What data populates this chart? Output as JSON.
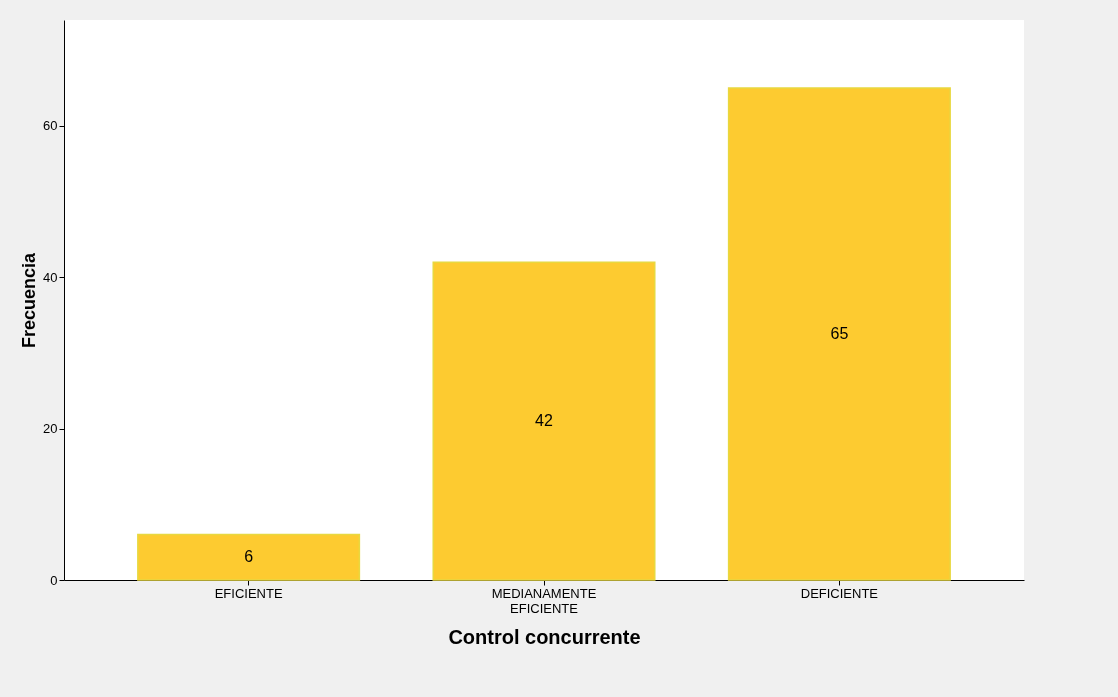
{
  "chart_data": {
    "type": "bar",
    "xlabel": "Control concurrente",
    "ylabel": "Frecuencia",
    "categories": [
      "EFICIENTE",
      "MEDIANAMENTE EFICIENTE",
      "DEFICIENTE"
    ],
    "values": [
      6,
      42,
      65
    ],
    "color": "#fdcb30",
    "ylim": [
      0,
      74
    ],
    "yticks": [
      0,
      20,
      40,
      60
    ],
    "grid": false,
    "data_labels": true
  }
}
